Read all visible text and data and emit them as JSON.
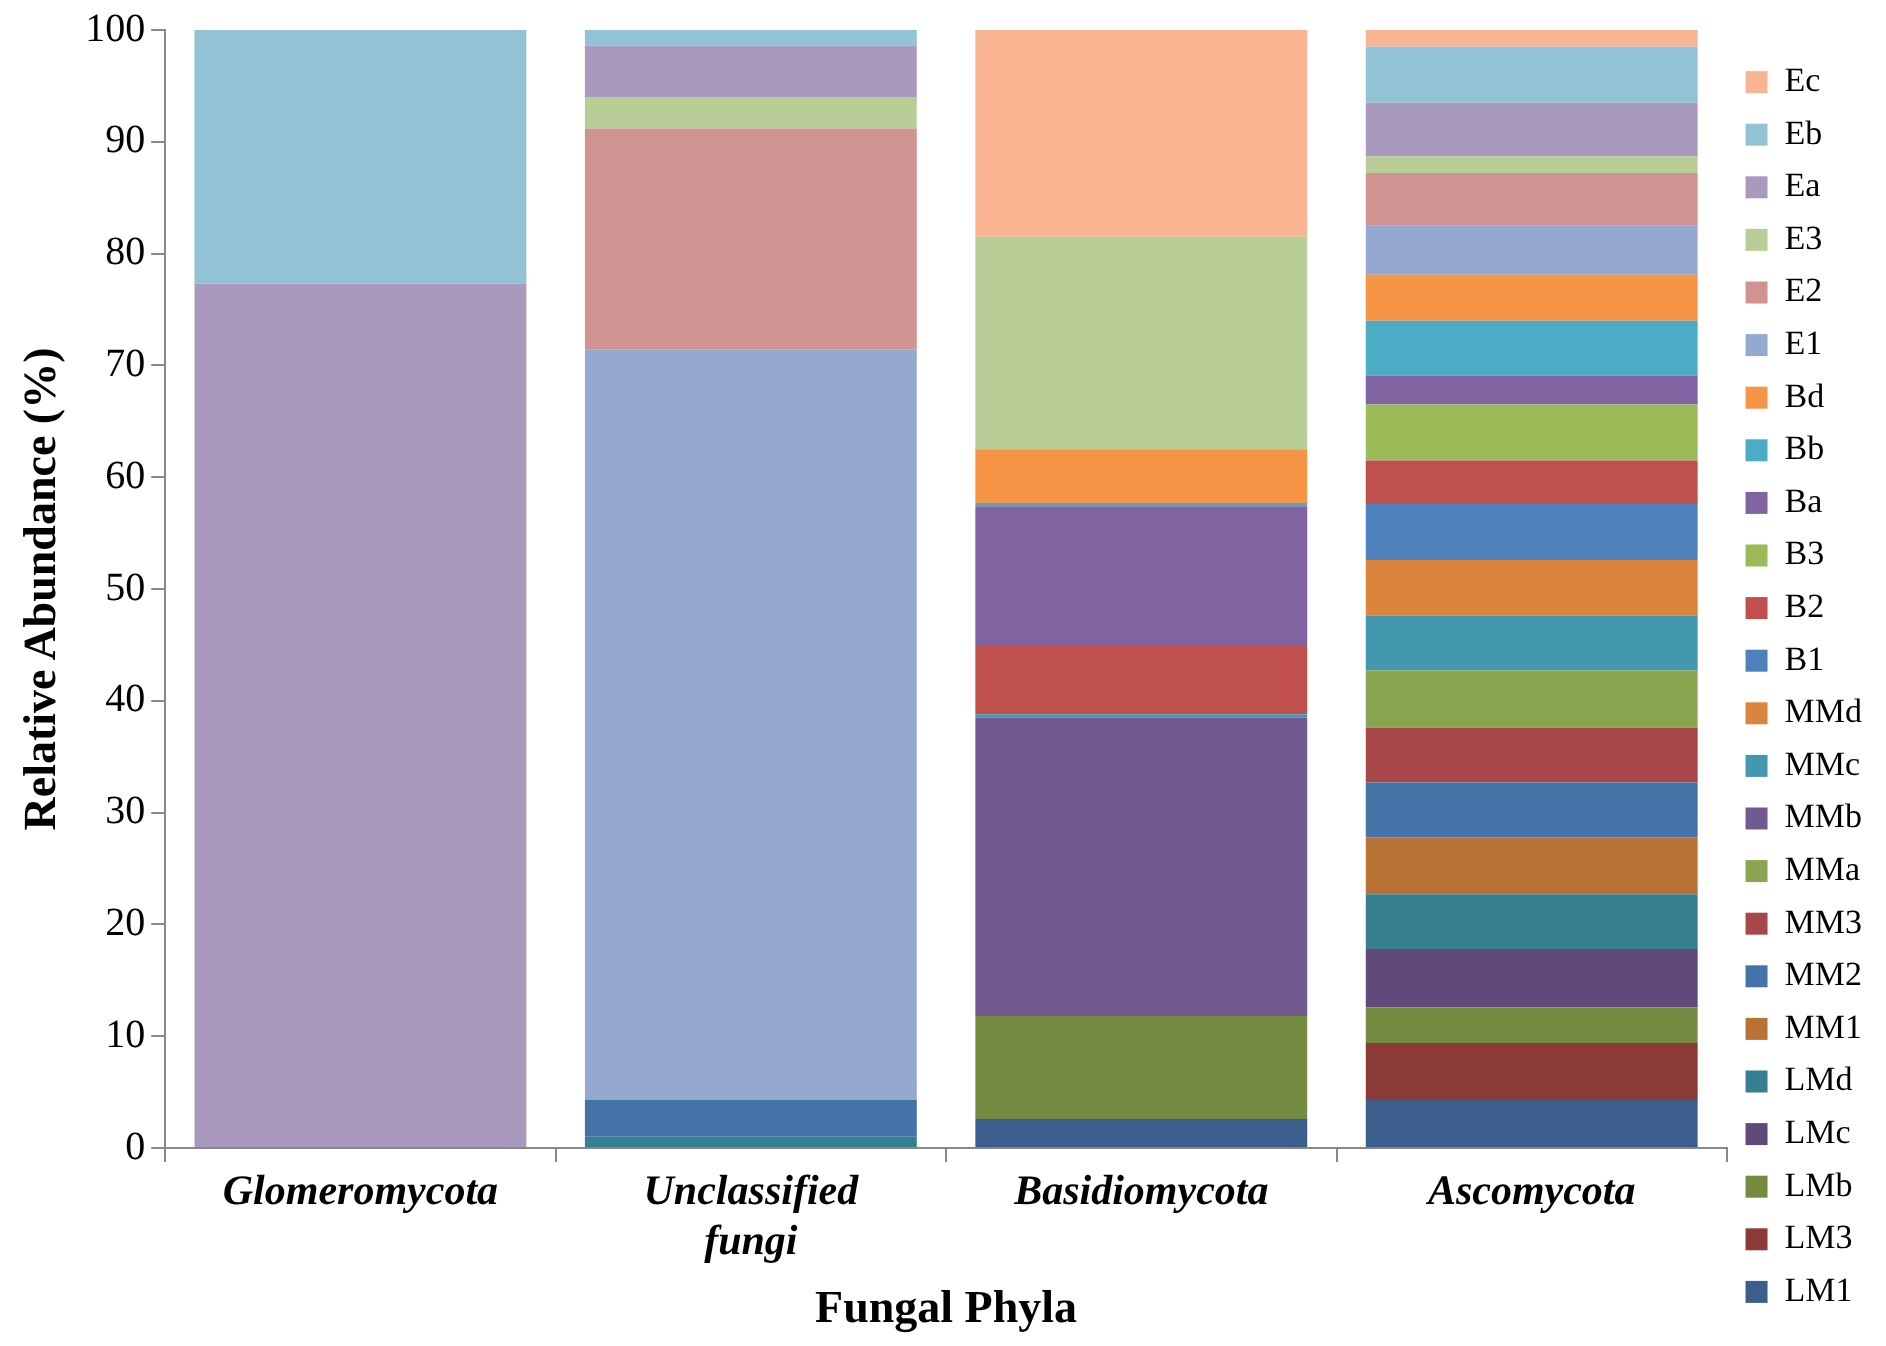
{
  "chart_data": {
    "type": "bar",
    "stacked": true,
    "xlabel": "Fungal Phyla",
    "ylabel": "Relative Abundance (%)",
    "categories": [
      "Glomeromycota",
      "Unclassified fungi",
      "Basidiomycota",
      "Ascomycota"
    ],
    "ylim": [
      0,
      100
    ],
    "yticks": [
      0,
      10,
      20,
      30,
      40,
      50,
      60,
      70,
      80,
      90,
      100
    ],
    "grid": false,
    "legend": "right",
    "series": [
      {
        "name": "LM1",
        "color": "#3b5e8c",
        "values": [
          null,
          null,
          2.6,
          4.3
        ]
      },
      {
        "name": "LM3",
        "color": "#8c3a38",
        "values": [
          null,
          null,
          null,
          5.1
        ]
      },
      {
        "name": "LMb",
        "color": "#768b42",
        "values": [
          null,
          null,
          9.2,
          3.2
        ]
      },
      {
        "name": "LMc",
        "color": "#5f4a7a",
        "values": [
          null,
          null,
          null,
          5.2
        ]
      },
      {
        "name": "LMd",
        "color": "#367f91",
        "values": [
          null,
          1.0,
          null,
          4.9
        ]
      },
      {
        "name": "MM1",
        "color": "#b87334",
        "values": [
          null,
          null,
          null,
          5.1
        ]
      },
      {
        "name": "MM2",
        "color": "#4573a7",
        "values": [
          null,
          3.3,
          null,
          4.9
        ]
      },
      {
        "name": "MM3",
        "color": "#a8474a",
        "values": [
          null,
          null,
          null,
          4.9
        ]
      },
      {
        "name": "MMa",
        "color": "#8aa54f",
        "values": [
          null,
          null,
          null,
          5.1
        ]
      },
      {
        "name": "MMb",
        "color": "#725990",
        "values": [
          null,
          null,
          26.7,
          null
        ]
      },
      {
        "name": "MMc",
        "color": "#4398b0",
        "values": [
          null,
          null,
          0.3,
          4.9
        ]
      },
      {
        "name": "MMd",
        "color": "#db843d",
        "values": [
          null,
          null,
          null,
          5.0
        ]
      },
      {
        "name": "B1",
        "color": "#4f81bd",
        "values": [
          null,
          null,
          null,
          5.0
        ]
      },
      {
        "name": "B2",
        "color": "#c0504d",
        "values": [
          null,
          null,
          6.2,
          3.9
        ]
      },
      {
        "name": "B3",
        "color": "#9bbb59",
        "values": [
          null,
          null,
          null,
          5.0
        ]
      },
      {
        "name": "Ba",
        "color": "#8064a2",
        "values": [
          null,
          null,
          12.4,
          2.6
        ]
      },
      {
        "name": "Bb",
        "color": "#4bacc6",
        "values": [
          null,
          null,
          0.3,
          4.9
        ]
      },
      {
        "name": "Bd",
        "color": "#f69545",
        "values": [
          null,
          null,
          4.8,
          4.1
        ]
      },
      {
        "name": "E1",
        "color": "#95a9d0",
        "values": [
          null,
          67.1,
          null,
          4.4
        ]
      },
      {
        "name": "E2",
        "color": "#d19392",
        "values": [
          null,
          19.8,
          null,
          4.7
        ]
      },
      {
        "name": "E3",
        "color": "#b9cd96",
        "values": [
          null,
          2.8,
          19.0,
          1.5
        ]
      },
      {
        "name": "Ea",
        "color": "#a99abd",
        "values": [
          77.3,
          4.6,
          null,
          4.8
        ]
      },
      {
        "name": "Eb",
        "color": "#92c3d4",
        "values": [
          22.7,
          1.4,
          null,
          5.0
        ]
      },
      {
        "name": "Ec",
        "color": "#f9b591",
        "values": [
          null,
          null,
          18.5,
          1.5
        ]
      }
    ]
  }
}
